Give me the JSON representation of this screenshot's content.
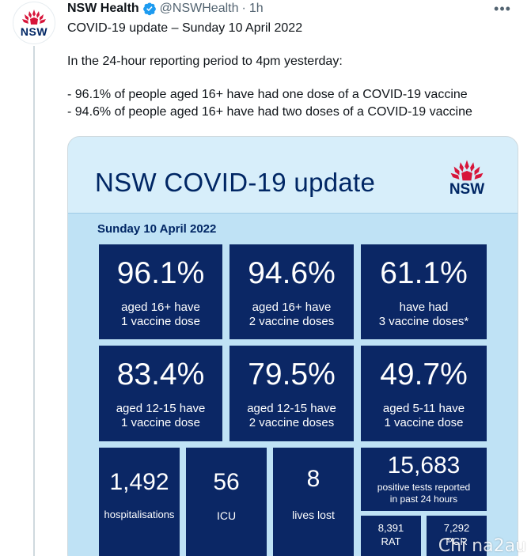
{
  "tweet": {
    "author_name": "NSW Health",
    "handle": "@NSWHealth",
    "separator": "·",
    "time": "1h",
    "more_label": "•••",
    "avatar_text": "NSW",
    "lines": [
      "COVID-19 update – Sunday 10 April 2022",
      "In the 24-hour reporting period to 4pm yesterday:",
      "- 96.1% of people aged 16+ have had one dose of a COVID-19 vaccine",
      "- 94.6% of people aged 16+ have had two doses of a COVID-19 vaccine"
    ]
  },
  "card": {
    "title": "NSW COVID-19 update",
    "logo_text": "NSW",
    "date": "Sunday 10 April 2022",
    "tiles": [
      {
        "value": "96.1%",
        "line1": "aged 16+ have",
        "line2": "1 vaccine dose"
      },
      {
        "value": "94.6%",
        "line1": "aged 16+ have",
        "line2": "2 vaccine doses"
      },
      {
        "value": "61.1%",
        "line1": "have had",
        "line2": "3 vaccine doses*"
      },
      {
        "value": "83.4%",
        "line1": "aged 12-15 have",
        "line2": "1 vaccine dose"
      },
      {
        "value": "79.5%",
        "line1": "aged 12-15 have",
        "line2": "2 vaccine doses"
      },
      {
        "value": "49.7%",
        "line1": "aged 5-11 have",
        "line2": "1 vaccine dose"
      }
    ],
    "hospitalisations": {
      "value": "1,492",
      "label": "hospitalisations"
    },
    "icu": {
      "value": "56",
      "label": "ICU"
    },
    "lives_lost": {
      "value": "8",
      "label": "lives lost"
    },
    "positive_tests": {
      "value": "15,683",
      "line1": "positive tests reported",
      "line2": "in past 24 hours"
    },
    "rat": {
      "value": "8,391",
      "label": "RAT"
    },
    "pcr": {
      "value": "7,292",
      "label": "PCR"
    }
  },
  "watermark": "Chi na2au",
  "colors": {
    "navy": "#0b2765",
    "nsw_blue": "#002664",
    "waratah_red": "#d7153a",
    "verified_blue": "#1d9bf0",
    "card_bg": "#bfe2f5"
  },
  "icons": [
    "waratah-logo",
    "verified-badge-icon",
    "more-options-icon"
  ]
}
